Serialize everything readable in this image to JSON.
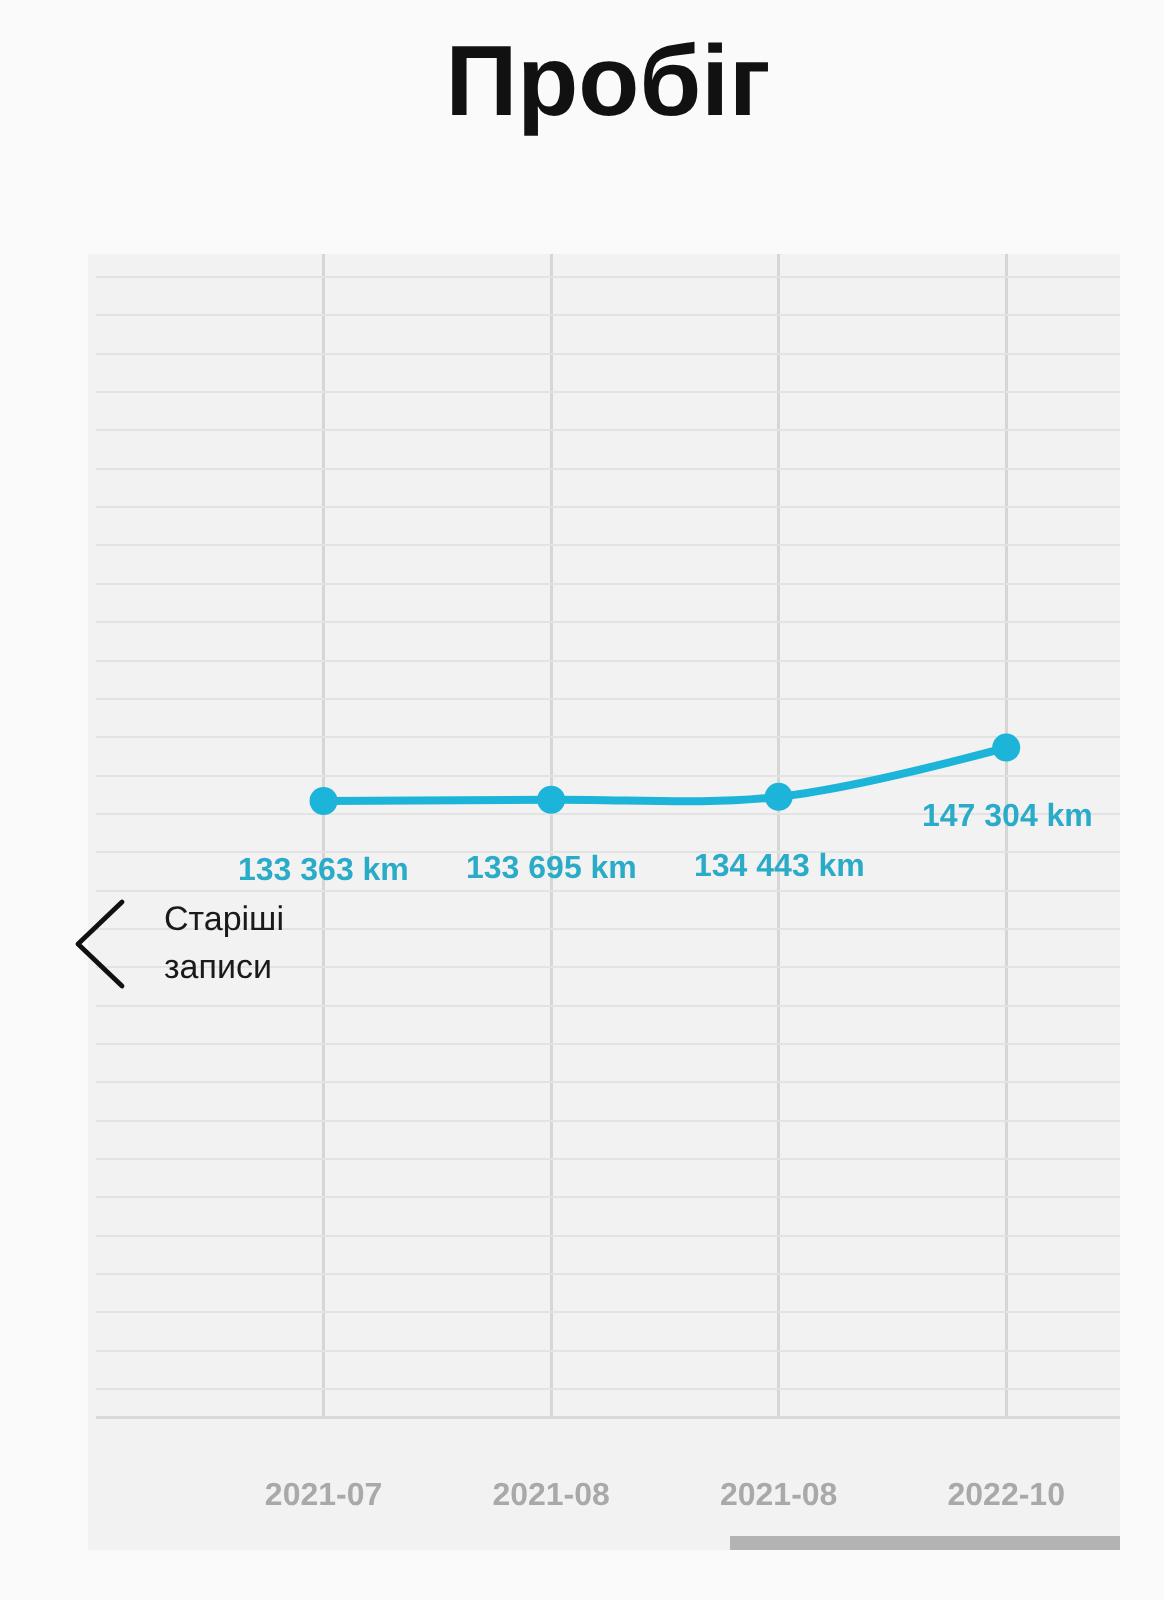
{
  "chart_data": {
    "type": "line",
    "title": "Пробіг",
    "annotations": [
      "Старіші записи"
    ],
    "categories": [
      "2021-07",
      "2021-08",
      "2021-08",
      "2022-10"
    ],
    "values": [
      133363,
      133695,
      134443,
      147304
    ],
    "value_labels": [
      "133 363 km",
      "133 695 km",
      "134 443 km",
      "147 304 km"
    ],
    "color": "#1cb4d8",
    "marker": "circle",
    "line_style": "solid",
    "ylim": [
      -27000,
      276000
    ],
    "yticks": [
      {
        "value": -20000,
        "label": null
      },
      {
        "value": -10000,
        "label": null
      },
      {
        "value": 0,
        "label": null
      },
      {
        "value": 10000,
        "label": null
      },
      {
        "value": 20000,
        "label": null
      },
      {
        "value": 30000,
        "label": null
      },
      {
        "value": 40000,
        "label": null
      },
      {
        "value": 50000,
        "label": null
      },
      {
        "value": 60000,
        "label": null
      },
      {
        "value": 70000,
        "label": null
      },
      {
        "value": 80000,
        "label": null
      },
      {
        "value": 90000,
        "label": null
      },
      {
        "value": 100000,
        "label": null
      },
      {
        "value": 110000,
        "label": null
      },
      {
        "value": 120000,
        "label": null
      },
      {
        "value": 130000,
        "label": null
      },
      {
        "value": 140000,
        "label": null
      },
      {
        "value": 150000,
        "label": null
      },
      {
        "value": 160000,
        "label": null
      },
      {
        "value": 170000,
        "label": null
      },
      {
        "value": 180000,
        "label": null
      },
      {
        "value": 190000,
        "label": null
      },
      {
        "value": 200000,
        "label": null
      },
      {
        "value": 210000,
        "label": null
      },
      {
        "value": 220000,
        "label": null
      },
      {
        "value": 230000,
        "label": null
      },
      {
        "value": 240000,
        "label": null
      },
      {
        "value": 250000,
        "label": null
      },
      {
        "value": 260000,
        "label": null
      },
      {
        "value": 270000,
        "label": null
      }
    ],
    "grid": true,
    "tick_labels": "x"
  }
}
